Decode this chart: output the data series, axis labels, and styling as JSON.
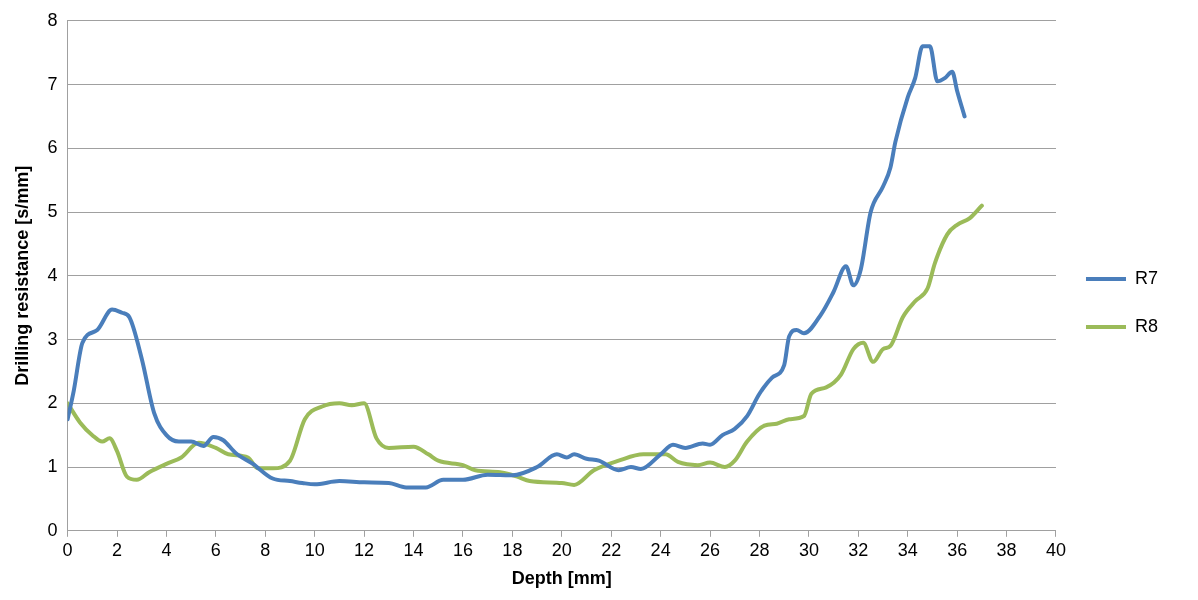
{
  "chart_data": {
    "type": "line",
    "xlabel": "Depth [mm]",
    "ylabel": "Drilling resistance [s/mm]",
    "xlim": [
      0,
      40
    ],
    "xticks": [
      0,
      2,
      4,
      6,
      8,
      10,
      12,
      14,
      16,
      18,
      20,
      22,
      24,
      26,
      28,
      30,
      32,
      34,
      36,
      38,
      40
    ],
    "ylim": [
      0,
      8
    ],
    "yticks": [
      0,
      1,
      2,
      3,
      4,
      5,
      6,
      7,
      8
    ],
    "grid": "y",
    "legend": "right",
    "marker": "none",
    "line_style": "solid",
    "series": [
      {
        "name": "R7",
        "color": "#4a7ebb",
        "x": [
          0,
          0.25,
          0.6,
          1.2,
          1.8,
          2.2,
          2.5,
          3,
          3.5,
          4,
          4.5,
          5,
          5.5,
          5.9,
          6.3,
          6.8,
          7.5,
          8.3,
          9,
          9.5,
          10,
          11,
          12,
          13,
          13.7,
          14.5,
          15.2,
          16,
          17,
          18,
          19,
          19.8,
          20.2,
          20.5,
          21,
          21.5,
          22.3,
          22.8,
          23.2,
          24,
          24.5,
          25,
          25.7,
          26,
          26.5,
          27,
          27.5,
          28,
          28.5,
          29,
          29.2,
          29.5,
          29.8,
          30.5,
          31,
          31.5,
          31.8,
          32.1,
          32.5,
          33,
          33.3,
          33.5,
          34,
          34.3,
          34.6,
          34.9,
          35.2,
          35.5,
          35.8,
          36,
          36.3
        ],
        "values": [
          1.75,
          2.2,
          2.95,
          3.15,
          3.47,
          3.42,
          3.35,
          2.7,
          1.85,
          1.5,
          1.4,
          1.4,
          1.33,
          1.47,
          1.42,
          1.22,
          1.05,
          0.82,
          0.78,
          0.75,
          0.73,
          0.78,
          0.76,
          0.75,
          0.68,
          0.68,
          0.8,
          0.8,
          0.88,
          0.87,
          1,
          1.2,
          1.15,
          1.2,
          1.13,
          1.1,
          0.95,
          1,
          0.97,
          1.2,
          1.35,
          1.3,
          1.37,
          1.35,
          1.5,
          1.6,
          1.8,
          2.15,
          2.4,
          2.6,
          3.05,
          3.15,
          3.1,
          3.4,
          3.75,
          4.15,
          3.85,
          4.1,
          5,
          5.4,
          5.7,
          6.1,
          6.8,
          7.1,
          7.6,
          7.6,
          7.05,
          7.1,
          7.2,
          6.9,
          6.5
        ]
      },
      {
        "name": "R8",
        "color": "#9bbb59",
        "x": [
          0,
          0.5,
          1,
          1.4,
          1.7,
          2,
          2.4,
          2.8,
          3.3,
          4,
          4.6,
          5.3,
          6,
          6.5,
          7.3,
          7.7,
          8.3,
          9,
          9.6,
          10.3,
          11,
          11.5,
          12,
          12.5,
          13,
          14,
          14.6,
          15,
          16,
          16.5,
          17.5,
          18.2,
          18.7,
          20,
          20.5,
          21.3,
          22.3,
          23.3,
          24.2,
          24.7,
          25.5,
          26,
          26.6,
          27,
          27.5,
          28.2,
          28.7,
          29.2,
          29.8,
          30.1,
          30.7,
          31.3,
          31.8,
          32.2,
          32.6,
          33,
          33.3,
          33.8,
          34.3,
          34.8,
          35.1,
          35.6,
          36,
          36.5,
          37
        ],
        "values": [
          2,
          1.7,
          1.5,
          1.4,
          1.45,
          1.25,
          0.85,
          0.8,
          0.92,
          1.05,
          1.15,
          1.38,
          1.3,
          1.2,
          1.15,
          0.98,
          0.98,
          1.1,
          1.75,
          1.95,
          2,
          1.97,
          2,
          1.45,
          1.3,
          1.32,
          1.2,
          1.1,
          1.03,
          0.95,
          0.92,
          0.85,
          0.78,
          0.75,
          0.72,
          0.95,
          1.1,
          1.2,
          1.2,
          1.08,
          1.03,
          1.07,
          1,
          1.1,
          1.4,
          1.65,
          1.68,
          1.75,
          1.8,
          2.15,
          2.25,
          2.45,
          2.85,
          2.95,
          2.65,
          2.85,
          2.9,
          3.35,
          3.6,
          3.8,
          4.2,
          4.65,
          4.8,
          4.9,
          5.1
        ]
      }
    ]
  }
}
